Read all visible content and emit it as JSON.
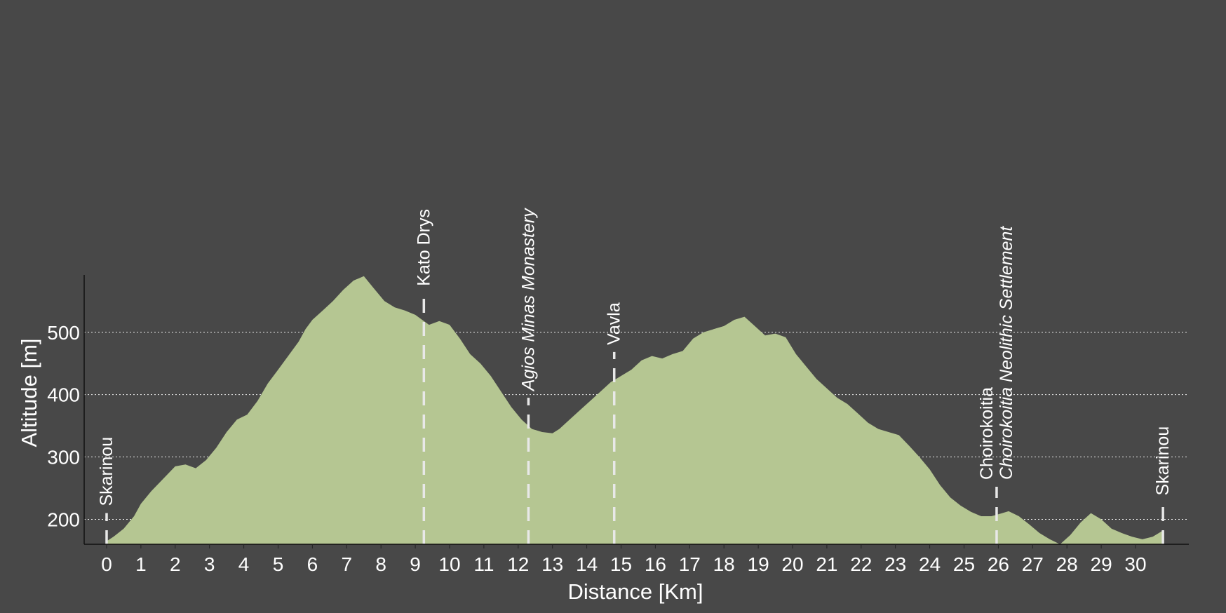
{
  "chart_data": {
    "type": "area",
    "title": "",
    "xlabel": "Distance [Km]",
    "ylabel": "Altitude [m]",
    "xlim": [
      0,
      31
    ],
    "ylim": [
      160,
      592
    ],
    "x_ticks": [
      0,
      1,
      2,
      3,
      4,
      5,
      6,
      7,
      8,
      9,
      10,
      11,
      12,
      13,
      14,
      15,
      16,
      17,
      18,
      19,
      20,
      21,
      22,
      23,
      24,
      25,
      26,
      27,
      28,
      29,
      30
    ],
    "y_ticks": [
      200,
      300,
      400,
      500
    ],
    "grid": "horizontal dotted",
    "fill_color": "#b5c692",
    "background_color": "#484848",
    "series": [
      {
        "x": [
          0,
          0.2,
          0.5,
          0.8,
          1.0,
          1.3,
          1.6,
          2.0,
          2.3,
          2.6,
          2.9,
          3.2,
          3.5,
          3.8,
          4.1,
          4.4,
          4.7,
          5.0,
          5.2,
          5.4,
          5.6,
          5.8,
          6.0,
          6.3,
          6.6,
          6.9,
          7.2,
          7.5,
          7.8,
          8.1,
          8.4,
          8.7,
          9.0,
          9.2,
          9.4,
          9.7,
          10.0,
          10.3,
          10.6,
          10.9,
          11.2,
          11.5,
          11.8,
          12.1,
          12.4,
          12.7,
          13.0,
          13.2,
          13.5,
          13.8,
          14.1,
          14.4,
          14.7,
          15.0,
          15.3,
          15.6,
          15.9,
          16.2,
          16.5,
          16.8,
          17.1,
          17.4,
          17.7,
          18.0,
          18.3,
          18.6,
          18.9,
          19.2,
          19.5,
          19.8,
          20.1,
          20.4,
          20.7,
          21.0,
          21.3,
          21.6,
          21.9,
          22.2,
          22.5,
          22.8,
          23.1,
          23.4,
          23.7,
          24.0,
          24.3,
          24.6,
          24.9,
          25.2,
          25.5,
          25.8,
          26.0,
          26.3,
          26.6,
          26.9,
          27.2,
          27.5,
          27.8,
          28.1,
          28.4,
          28.7,
          29.0,
          29.3,
          29.6,
          29.9,
          30.2,
          30.5,
          30.8
        ],
        "y": [
          165,
          172,
          185,
          205,
          225,
          245,
          262,
          285,
          288,
          282,
          295,
          315,
          340,
          360,
          368,
          390,
          418,
          440,
          455,
          470,
          485,
          505,
          520,
          535,
          550,
          568,
          583,
          590,
          570,
          550,
          540,
          535,
          528,
          520,
          512,
          518,
          512,
          490,
          465,
          450,
          430,
          405,
          380,
          360,
          345,
          340,
          338,
          345,
          360,
          375,
          390,
          405,
          420,
          430,
          440,
          455,
          462,
          458,
          465,
          470,
          490,
          500,
          505,
          510,
          520,
          525,
          510,
          495,
          498,
          492,
          465,
          445,
          425,
          410,
          395,
          385,
          370,
          355,
          345,
          340,
          335,
          318,
          300,
          280,
          255,
          235,
          222,
          212,
          205,
          205,
          208,
          213,
          205,
          192,
          178,
          168,
          160,
          175,
          195,
          210,
          200,
          185,
          178,
          172,
          168,
          172,
          182
        ]
      }
    ],
    "waypoints": [
      {
        "km": 0,
        "name": "Skarinou",
        "italic": false
      },
      {
        "km": 9.25,
        "name": "Kato Drys",
        "italic": false
      },
      {
        "km": 12.3,
        "name": "Agios Minas Monastery",
        "italic": true
      },
      {
        "km": 14.8,
        "name": "Vavla",
        "italic": false
      },
      {
        "km": 25.95,
        "name": "Choirokoitia",
        "italic": false
      },
      {
        "km": 25.95,
        "name": "Choirokoitia Neolithic Settlement",
        "italic": true
      },
      {
        "km": 30.8,
        "name": "Skarinou",
        "italic": false
      }
    ]
  }
}
